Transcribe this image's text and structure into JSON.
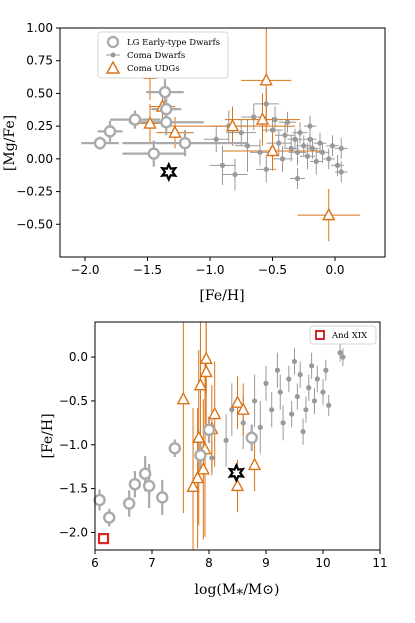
{
  "colors": {
    "lg": "#aaaaaa",
    "coma": "#999999",
    "udg": "#d97316",
    "star": "#000000",
    "andxix": "#d62728",
    "axis": "#000000"
  },
  "chart_data": [
    {
      "type": "scatter",
      "xlabel": "[Fe/H]",
      "ylabel": "[Mg/Fe]",
      "xlim": [
        -2.2,
        0.4
      ],
      "ylim": [
        -0.75,
        1.0
      ],
      "xticks": [
        -2.0,
        -1.5,
        -1.0,
        -0.5,
        0.0
      ],
      "xtick_labels": [
        "−2.0",
        "−1.5",
        "−1.0",
        "−0.5",
        "0.0"
      ],
      "yticks": [
        -0.5,
        -0.25,
        0.0,
        0.25,
        0.5,
        0.75,
        1.0
      ],
      "ytick_labels": [
        "−0.50",
        "−0.25",
        "0.00",
        "0.25",
        "0.50",
        "0.75",
        "1.00"
      ],
      "legend_position": "top-left",
      "legend": [
        "LG Early-type Dwarfs",
        "Coma Dwarfs",
        "Coma UDGs"
      ],
      "series": [
        {
          "name": "LG Early-type Dwarfs",
          "marker": "open-circle",
          "points": [
            {
              "x": -1.88,
              "y": 0.12,
              "xerr": 0.15,
              "yerr": 0.05
            },
            {
              "x": -1.8,
              "y": 0.21,
              "xerr": 0.1,
              "yerr": 0.08
            },
            {
              "x": -1.6,
              "y": 0.3,
              "xerr": 0.2,
              "yerr": 0.07
            },
            {
              "x": -1.36,
              "y": 0.51,
              "xerr": 0.15,
              "yerr": 0.1
            },
            {
              "x": -1.35,
              "y": 0.38,
              "xerr": 0.12,
              "yerr": 0.08
            },
            {
              "x": -1.35,
              "y": 0.28,
              "xerr": 0.3,
              "yerr": 0.1
            },
            {
              "x": -1.45,
              "y": 0.04,
              "xerr": 0.25,
              "yerr": 0.1
            },
            {
              "x": -1.2,
              "y": 0.12,
              "xerr": 0.5,
              "yerr": 0.1
            }
          ]
        },
        {
          "name": "Coma Dwarfs",
          "marker": "dot",
          "points": [
            {
              "x": -0.95,
              "y": 0.15,
              "xerr": 0.1,
              "yerr": 0.1
            },
            {
              "x": -0.85,
              "y": 0.25,
              "xerr": 0.15,
              "yerr": 0.12
            },
            {
              "x": -0.75,
              "y": 0.2,
              "xerr": 0.12,
              "yerr": 0.1
            },
            {
              "x": -0.7,
              "y": 0.1,
              "xerr": 0.1,
              "yerr": 0.2
            },
            {
              "x": -0.65,
              "y": 0.32,
              "xerr": 0.1,
              "yerr": 0.1
            },
            {
              "x": -0.6,
              "y": 0.05,
              "xerr": 0.08,
              "yerr": 0.1
            },
            {
              "x": -0.55,
              "y": 0.42,
              "xerr": 0.1,
              "yerr": 0.12
            },
            {
              "x": -0.5,
              "y": 0.22,
              "xerr": 0.08,
              "yerr": 0.1
            },
            {
              "x": -0.48,
              "y": 0.3,
              "xerr": 0.06,
              "yerr": 0.1
            },
            {
              "x": -0.45,
              "y": 0.12,
              "xerr": 0.1,
              "yerr": 0.1
            },
            {
              "x": -0.42,
              "y": 0.0,
              "xerr": 0.08,
              "yerr": 0.1
            },
            {
              "x": -0.4,
              "y": 0.18,
              "xerr": 0.08,
              "yerr": 0.1
            },
            {
              "x": -0.38,
              "y": 0.28,
              "xerr": 0.07,
              "yerr": 0.08
            },
            {
              "x": -0.35,
              "y": 0.08,
              "xerr": 0.06,
              "yerr": 0.1
            },
            {
              "x": -0.32,
              "y": 0.15,
              "xerr": 0.06,
              "yerr": 0.08
            },
            {
              "x": -0.3,
              "y": 0.05,
              "xerr": 0.07,
              "yerr": 0.1
            },
            {
              "x": -0.28,
              "y": 0.2,
              "xerr": 0.06,
              "yerr": 0.08
            },
            {
              "x": -0.25,
              "y": 0.1,
              "xerr": 0.06,
              "yerr": 0.08
            },
            {
              "x": -0.22,
              "y": 0.02,
              "xerr": 0.06,
              "yerr": 0.1
            },
            {
              "x": -0.2,
              "y": 0.15,
              "xerr": 0.05,
              "yerr": 0.08
            },
            {
              "x": -0.18,
              "y": 0.08,
              "xerr": 0.05,
              "yerr": 0.08
            },
            {
              "x": -0.15,
              "y": -0.02,
              "xerr": 0.05,
              "yerr": 0.1
            },
            {
              "x": -0.12,
              "y": 0.12,
              "xerr": 0.05,
              "yerr": 0.08
            },
            {
              "x": -0.1,
              "y": 0.05,
              "xerr": 0.05,
              "yerr": 0.08
            },
            {
              "x": -0.05,
              "y": 0.0,
              "xerr": 0.05,
              "yerr": 0.08
            },
            {
              "x": -0.02,
              "y": 0.1,
              "xerr": 0.05,
              "yerr": 0.08
            },
            {
              "x": 0.02,
              "y": -0.05,
              "xerr": 0.05,
              "yerr": 0.08
            },
            {
              "x": 0.05,
              "y": 0.08,
              "xerr": 0.05,
              "yerr": 0.08
            },
            {
              "x": 0.05,
              "y": -0.1,
              "xerr": 0.05,
              "yerr": 0.08
            },
            {
              "x": -0.9,
              "y": -0.05,
              "xerr": 0.1,
              "yerr": 0.15
            },
            {
              "x": -0.8,
              "y": -0.12,
              "xerr": 0.1,
              "yerr": 0.12
            },
            {
              "x": -0.55,
              "y": -0.08,
              "xerr": 0.08,
              "yerr": 0.1
            },
            {
              "x": -0.3,
              "y": -0.15,
              "xerr": 0.06,
              "yerr": 0.08
            },
            {
              "x": -0.2,
              "y": 0.25,
              "xerr": 0.05,
              "yerr": 0.08
            }
          ]
        },
        {
          "name": "Coma UDGs",
          "marker": "open-triangle",
          "points": [
            {
              "x": -1.48,
              "y": 0.65,
              "xerr": 0.15,
              "yerr": 0.2
            },
            {
              "x": -1.38,
              "y": 0.4,
              "xerr": 0.1,
              "yerr": 0.15
            },
            {
              "x": -1.48,
              "y": 0.27,
              "xerr": 0.1,
              "yerr": 0.15
            },
            {
              "x": -1.28,
              "y": 0.2,
              "xerr": 0.15,
              "yerr": 0.12
            },
            {
              "x": -0.82,
              "y": 0.25,
              "xerr": 0.5,
              "yerr": 0.15
            },
            {
              "x": -0.58,
              "y": 0.3,
              "xerr": 0.3,
              "yerr": 0.2
            },
            {
              "x": -0.55,
              "y": 0.6,
              "xerr": 0.2,
              "yerr": 0.4
            },
            {
              "x": -0.5,
              "y": 0.06,
              "xerr": 0.4,
              "yerr": 0.15
            },
            {
              "x": -0.05,
              "y": -0.43,
              "xerr": 0.25,
              "yerr": 0.2
            }
          ]
        },
        {
          "name": "star",
          "marker": "star",
          "points": [
            {
              "x": -1.33,
              "y": -0.1
            }
          ]
        }
      ]
    },
    {
      "type": "scatter",
      "xlabel": "log(M⁎/M⊙)",
      "ylabel": "[Fe/H]",
      "xlim": [
        6.0,
        11.0
      ],
      "ylim": [
        -2.2,
        0.4
      ],
      "xticks": [
        6,
        7,
        8,
        9,
        10,
        11
      ],
      "xtick_labels": [
        "6",
        "7",
        "8",
        "9",
        "10",
        "11"
      ],
      "yticks": [
        -2.0,
        -1.5,
        -1.0,
        -0.5,
        0.0
      ],
      "ytick_labels": [
        "−2.0",
        "−1.5",
        "−1.0",
        "−0.5",
        "0.0"
      ],
      "legend_position": "top-right",
      "legend": [
        "And XIX"
      ],
      "series": [
        {
          "name": "LG Early-type Dwarfs",
          "marker": "open-circle",
          "points": [
            {
              "x": 6.08,
              "y": -1.63,
              "yerr": 0.12
            },
            {
              "x": 6.25,
              "y": -1.83,
              "yerr": 0.1
            },
            {
              "x": 6.6,
              "y": -1.67,
              "yerr": 0.15
            },
            {
              "x": 6.7,
              "y": -1.45,
              "yerr": 0.15
            },
            {
              "x": 6.88,
              "y": -1.33,
              "yerr": 0.2
            },
            {
              "x": 6.95,
              "y": -1.47,
              "yerr": 0.25
            },
            {
              "x": 7.18,
              "y": -1.6,
              "yerr": 0.2
            },
            {
              "x": 7.4,
              "y": -1.04,
              "yerr": 0.1
            },
            {
              "x": 7.85,
              "y": -1.12,
              "yerr": 0.2
            },
            {
              "x": 8.0,
              "y": -0.83,
              "yerr": 0.15
            },
            {
              "x": 8.75,
              "y": -0.92,
              "yerr": 0.15
            }
          ]
        },
        {
          "name": "Coma Dwarfs",
          "marker": "dot",
          "points": [
            {
              "x": 8.05,
              "y": -1.15,
              "yerr": 0.2
            },
            {
              "x": 8.3,
              "y": -0.95,
              "yerr": 0.3
            },
            {
              "x": 8.4,
              "y": -0.6,
              "yerr": 0.3
            },
            {
              "x": 8.6,
              "y": -0.75,
              "yerr": 0.3
            },
            {
              "x": 8.8,
              "y": -0.5,
              "yerr": 0.3
            },
            {
              "x": 8.9,
              "y": -0.8,
              "yerr": 0.3
            },
            {
              "x": 9.0,
              "y": -0.3,
              "yerr": 0.2
            },
            {
              "x": 9.1,
              "y": -0.6,
              "yerr": 0.2
            },
            {
              "x": 9.2,
              "y": -0.15,
              "yerr": 0.2
            },
            {
              "x": 9.25,
              "y": -0.4,
              "yerr": 0.2
            },
            {
              "x": 9.3,
              "y": -0.75,
              "yerr": 0.2
            },
            {
              "x": 9.4,
              "y": -0.25,
              "yerr": 0.15
            },
            {
              "x": 9.5,
              "y": -0.05,
              "yerr": 0.15
            },
            {
              "x": 9.55,
              "y": -0.45,
              "yerr": 0.15
            },
            {
              "x": 9.6,
              "y": -0.2,
              "yerr": 0.15
            },
            {
              "x": 9.7,
              "y": -0.6,
              "yerr": 0.15
            },
            {
              "x": 9.75,
              "y": -0.35,
              "yerr": 0.15
            },
            {
              "x": 9.8,
              "y": -0.1,
              "yerr": 0.15
            },
            {
              "x": 9.85,
              "y": -0.5,
              "yerr": 0.15
            },
            {
              "x": 9.9,
              "y": -0.25,
              "yerr": 0.15
            },
            {
              "x": 10.0,
              "y": -0.4,
              "yerr": 0.15
            },
            {
              "x": 10.05,
              "y": -0.15,
              "yerr": 0.12
            },
            {
              "x": 10.1,
              "y": -0.55,
              "yerr": 0.12
            },
            {
              "x": 10.3,
              "y": 0.05,
              "yerr": 0.1
            },
            {
              "x": 10.35,
              "y": 0.0,
              "yerr": 0.1
            },
            {
              "x": 9.65,
              "y": -0.85,
              "yerr": 0.15
            },
            {
              "x": 9.45,
              "y": -0.65,
              "yerr": 0.15
            }
          ]
        },
        {
          "name": "Coma UDGs",
          "marker": "open-triangle",
          "points": [
            {
              "x": 7.55,
              "y": -0.48,
              "yerr": 1.3
            },
            {
              "x": 7.72,
              "y": -1.48,
              "yerr": 0.9
            },
            {
              "x": 7.8,
              "y": -1.38,
              "yerr": 0.8
            },
            {
              "x": 7.82,
              "y": -0.92,
              "yerr": 1.0
            },
            {
              "x": 7.85,
              "y": -0.32,
              "yerr": 1.0
            },
            {
              "x": 7.9,
              "y": -1.28,
              "yerr": 0.8
            },
            {
              "x": 7.93,
              "y": -1.05,
              "yerr": 1.0
            },
            {
              "x": 7.95,
              "y": -0.02,
              "yerr": 0.4
            },
            {
              "x": 7.95,
              "y": -0.17,
              "yerr": 0.6
            },
            {
              "x": 8.05,
              "y": -0.82,
              "yerr": 0.5
            },
            {
              "x": 8.1,
              "y": -0.65,
              "yerr": 0.6
            },
            {
              "x": 8.5,
              "y": -0.52,
              "yerr": 0.3
            },
            {
              "x": 8.5,
              "y": -1.47,
              "yerr": 0.3
            },
            {
              "x": 8.6,
              "y": -0.6,
              "yerr": 0.3
            },
            {
              "x": 8.8,
              "y": -1.23,
              "yerr": 0.3
            }
          ]
        },
        {
          "name": "star",
          "marker": "star",
          "points": [
            {
              "x": 8.48,
              "y": -1.32
            }
          ]
        },
        {
          "name": "And XIX",
          "marker": "open-square",
          "points": [
            {
              "x": 6.15,
              "y": -2.07
            }
          ]
        }
      ]
    }
  ]
}
